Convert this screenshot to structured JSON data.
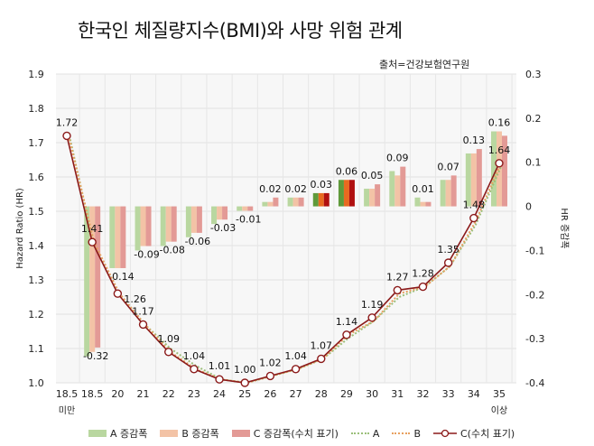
{
  "title": "한국인 체질량지수(BMI)와 사망 위험 관계",
  "source": "출처=건강보험연구원",
  "colors": {
    "A_bar": "#b9d7a0",
    "B_bar": "#f3c3a6",
    "C_bar": "#e39a96",
    "A_line": "#9bbf7a",
    "B_line": "#e8a060",
    "C_line": "#8b1a1a",
    "highlight_A": "#5f9a3a",
    "highlight_B": "#e86a20",
    "highlight_C": "#b01010"
  },
  "legend": [
    "A 증감폭",
    "B 증감폭",
    "C 증감폭(수치 표기)",
    "A",
    "B",
    "C(수치 표기)"
  ],
  "chart_data": {
    "type": "bar+line",
    "categories": [
      [
        "18.5",
        "미만"
      ],
      [
        "18.5",
        ""
      ],
      [
        "20",
        ""
      ],
      [
        "21",
        ""
      ],
      [
        "22",
        ""
      ],
      [
        "23",
        ""
      ],
      [
        "24",
        ""
      ],
      [
        "25",
        ""
      ],
      [
        "26",
        ""
      ],
      [
        "27",
        ""
      ],
      [
        "28",
        ""
      ],
      [
        "29",
        ""
      ],
      [
        "30",
        ""
      ],
      [
        "31",
        ""
      ],
      [
        "32",
        ""
      ],
      [
        "33",
        ""
      ],
      [
        "34",
        ""
      ],
      [
        "35",
        "이상"
      ]
    ],
    "ylabel_left": "Hazard Ratio (HR)",
    "ylabel_right": "HR 증감폭",
    "ylim_left": [
      1.0,
      1.9
    ],
    "ylim_right": [
      -0.4,
      0.3
    ],
    "yticks_left": [
      "1.0",
      "1.1",
      "1.2",
      "1.3",
      "1.4",
      "1.5",
      "1.6",
      "1.7",
      "1.8",
      "1.9"
    ],
    "yticks_right": [
      "-0.4",
      "-0.3",
      "-0.2",
      "-0.1",
      "0",
      "0.1",
      "0.2",
      "0.3"
    ],
    "grid": true,
    "legend_position": "bottom",
    "bars": [
      {
        "name": "A 증감폭",
        "axis": "right",
        "values": [
          null,
          -0.34,
          -0.14,
          -0.1,
          -0.09,
          -0.07,
          -0.04,
          -0.01,
          0.01,
          0.02,
          0.03,
          0.06,
          0.04,
          0.08,
          0.02,
          0.06,
          0.12,
          0.17
        ]
      },
      {
        "name": "B 증감폭",
        "axis": "right",
        "values": [
          null,
          -0.33,
          -0.14,
          -0.09,
          -0.08,
          -0.06,
          -0.03,
          -0.01,
          0.01,
          0.02,
          0.03,
          0.06,
          0.04,
          0.07,
          0.01,
          0.06,
          0.12,
          0.17
        ]
      },
      {
        "name": "C 증감폭(수치 표기)",
        "axis": "right",
        "values": [
          null,
          -0.32,
          -0.14,
          -0.09,
          -0.08,
          -0.06,
          -0.03,
          -0.01,
          0.02,
          0.02,
          0.03,
          0.06,
          0.05,
          0.09,
          0.01,
          0.07,
          0.13,
          0.16
        ],
        "labels": [
          "",
          "-0.32",
          "-0.14",
          "-0.09",
          "-0.08",
          "-0.06",
          "-0.03",
          "-0.01",
          "0.02",
          "0.02",
          "0.03",
          "0.06",
          "0.05",
          "0.09",
          "0.01",
          "0.07",
          "0.13",
          "0.16"
        ]
      }
    ],
    "highlighted_categories": [
      10,
      11
    ],
    "lines": [
      {
        "name": "A",
        "axis": "left",
        "values": [
          1.73,
          1.4,
          1.26,
          1.17,
          1.1,
          1.05,
          1.01,
          1.0,
          1.02,
          1.04,
          1.07,
          1.13,
          1.18,
          1.25,
          1.28,
          1.34,
          1.46,
          1.63
        ]
      },
      {
        "name": "B",
        "axis": "left",
        "values": [
          1.72,
          1.41,
          1.26,
          1.17,
          1.09,
          1.04,
          1.01,
          1.0,
          1.02,
          1.04,
          1.07,
          1.14,
          1.18,
          1.26,
          1.28,
          1.34,
          1.47,
          1.64
        ]
      },
      {
        "name": "C(수치 표기)",
        "axis": "left",
        "values": [
          1.72,
          1.41,
          1.26,
          1.17,
          1.09,
          1.04,
          1.01,
          1.0,
          1.02,
          1.04,
          1.07,
          1.14,
          1.19,
          1.27,
          1.28,
          1.35,
          1.48,
          1.64
        ],
        "labels": [
          "1.72",
          "1.41",
          "1.26",
          "1.17",
          "1.09",
          "1.04",
          "1.01",
          "1.00",
          "1.02",
          "1.04",
          "1.07",
          "1.14",
          "1.19",
          "1.27",
          "1.28",
          "1.35",
          "1.48",
          "1.64"
        ]
      }
    ]
  }
}
